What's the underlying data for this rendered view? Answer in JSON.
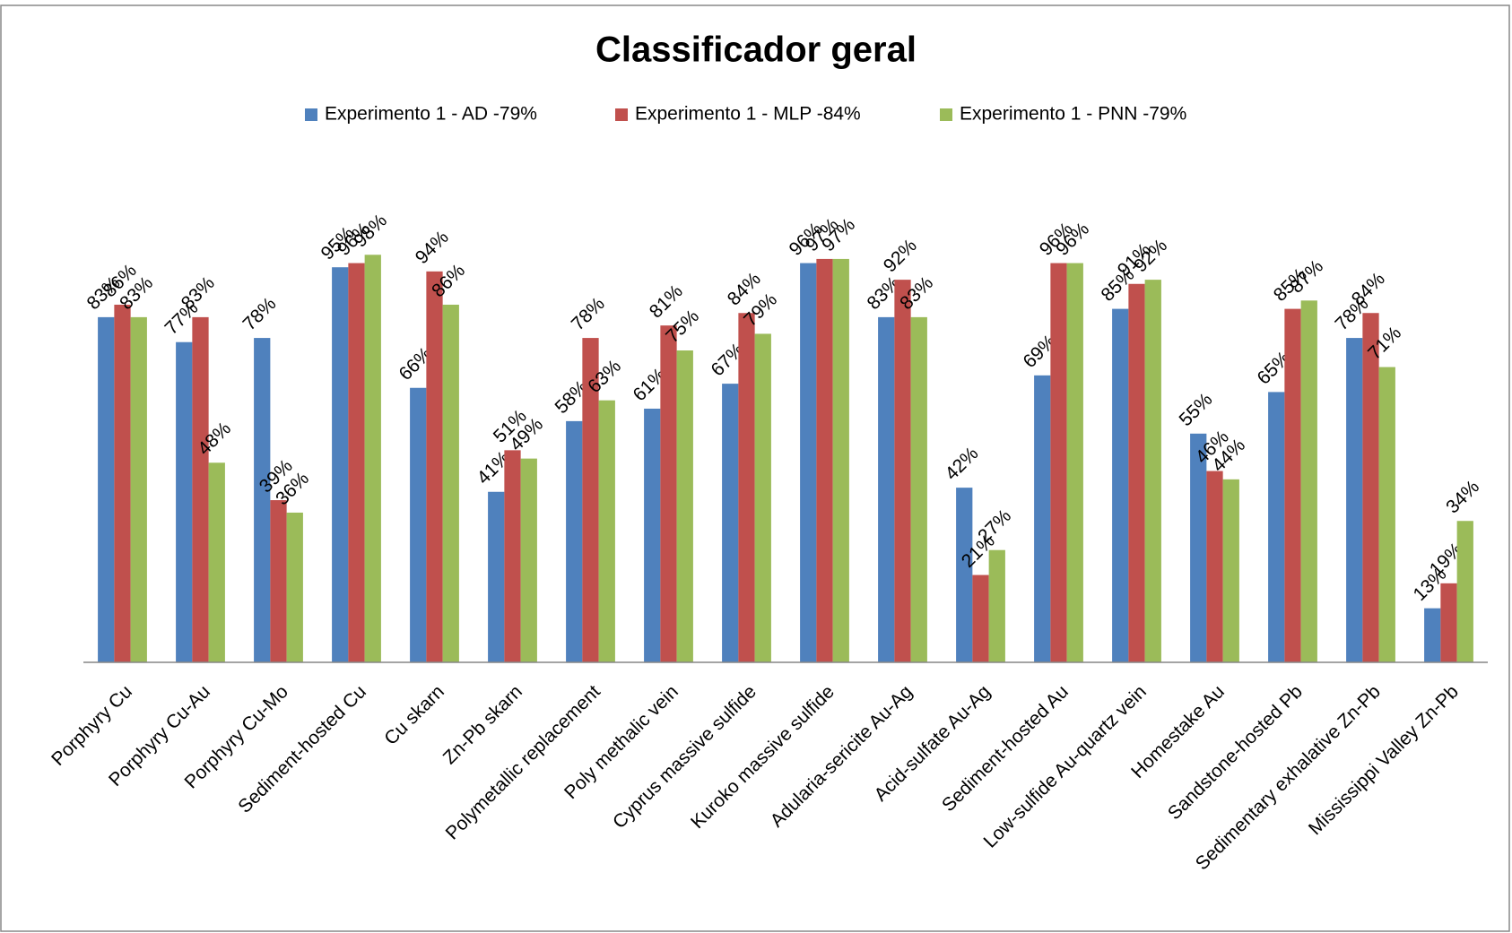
{
  "chart_data": {
    "type": "bar",
    "title": "Classificador geral",
    "categories": [
      "Porphyry Cu",
      "Porphyry Cu-Au",
      "Porphyry Cu-Mo",
      "Sediment-hosted Cu",
      "Cu skarn",
      "Zn-Pb skarn",
      "Polymetallic replacement",
      "Poly methalic vein",
      "Cyprus massive sulfide",
      "Kuroko massive sulfide",
      "Adularia-sericite Au-Ag",
      "Acid-sulfate Au-Ag",
      "Sediment-hosted Au",
      "Low-sulfide Au-quartz vein",
      "Homestake Au",
      "Sandstone-hosted Pb",
      "Sedimentary exhalative Zn-Pb",
      "Mississippi Valley Zn-Pb"
    ],
    "series": [
      {
        "name": "Experimento 1 - AD -79%",
        "color": "#4f81bd",
        "values": [
          83,
          77,
          78,
          95,
          66,
          41,
          58,
          61,
          67,
          96,
          83,
          42,
          69,
          85,
          55,
          65,
          78,
          13
        ],
        "value_labels": [
          "83%",
          "77%",
          "78%",
          "95%",
          "66%",
          "41%",
          "58%",
          "61%",
          "67%",
          "96%",
          "83%",
          "42%",
          "69%",
          "85%",
          "55%",
          "65%",
          "78%",
          "13%"
        ]
      },
      {
        "name": "Experimento 1 - MLP -84%",
        "color": "#c0504d",
        "values": [
          86,
          83,
          39,
          96,
          94,
          51,
          78,
          81,
          84,
          97,
          92,
          21,
          96,
          91,
          46,
          85,
          84,
          19
        ],
        "value_labels": [
          "86%",
          "83%",
          "39%",
          "96%",
          "94%",
          "51%",
          "78%",
          "81%",
          "84%",
          "97%",
          "92%",
          "21%",
          "96%",
          "91%",
          "46%",
          "85%",
          "84%",
          "19%"
        ]
      },
      {
        "name": "Experimento 1 - PNN -79%",
        "color": "#9bbb59",
        "values": [
          83,
          48,
          36,
          98,
          86,
          49,
          63,
          75,
          79,
          97,
          83,
          27,
          96,
          92,
          44,
          87,
          71,
          34
        ],
        "value_labels": [
          "83%",
          "48%",
          "36%",
          "98%",
          "86%",
          "49%",
          "63%",
          "75%",
          "79%",
          "97%",
          "83%",
          "27%",
          "96%",
          "92%",
          "44%",
          "87%",
          "71%",
          "34%"
        ]
      }
    ],
    "ylim": [
      0,
      100
    ],
    "legend": "top"
  }
}
